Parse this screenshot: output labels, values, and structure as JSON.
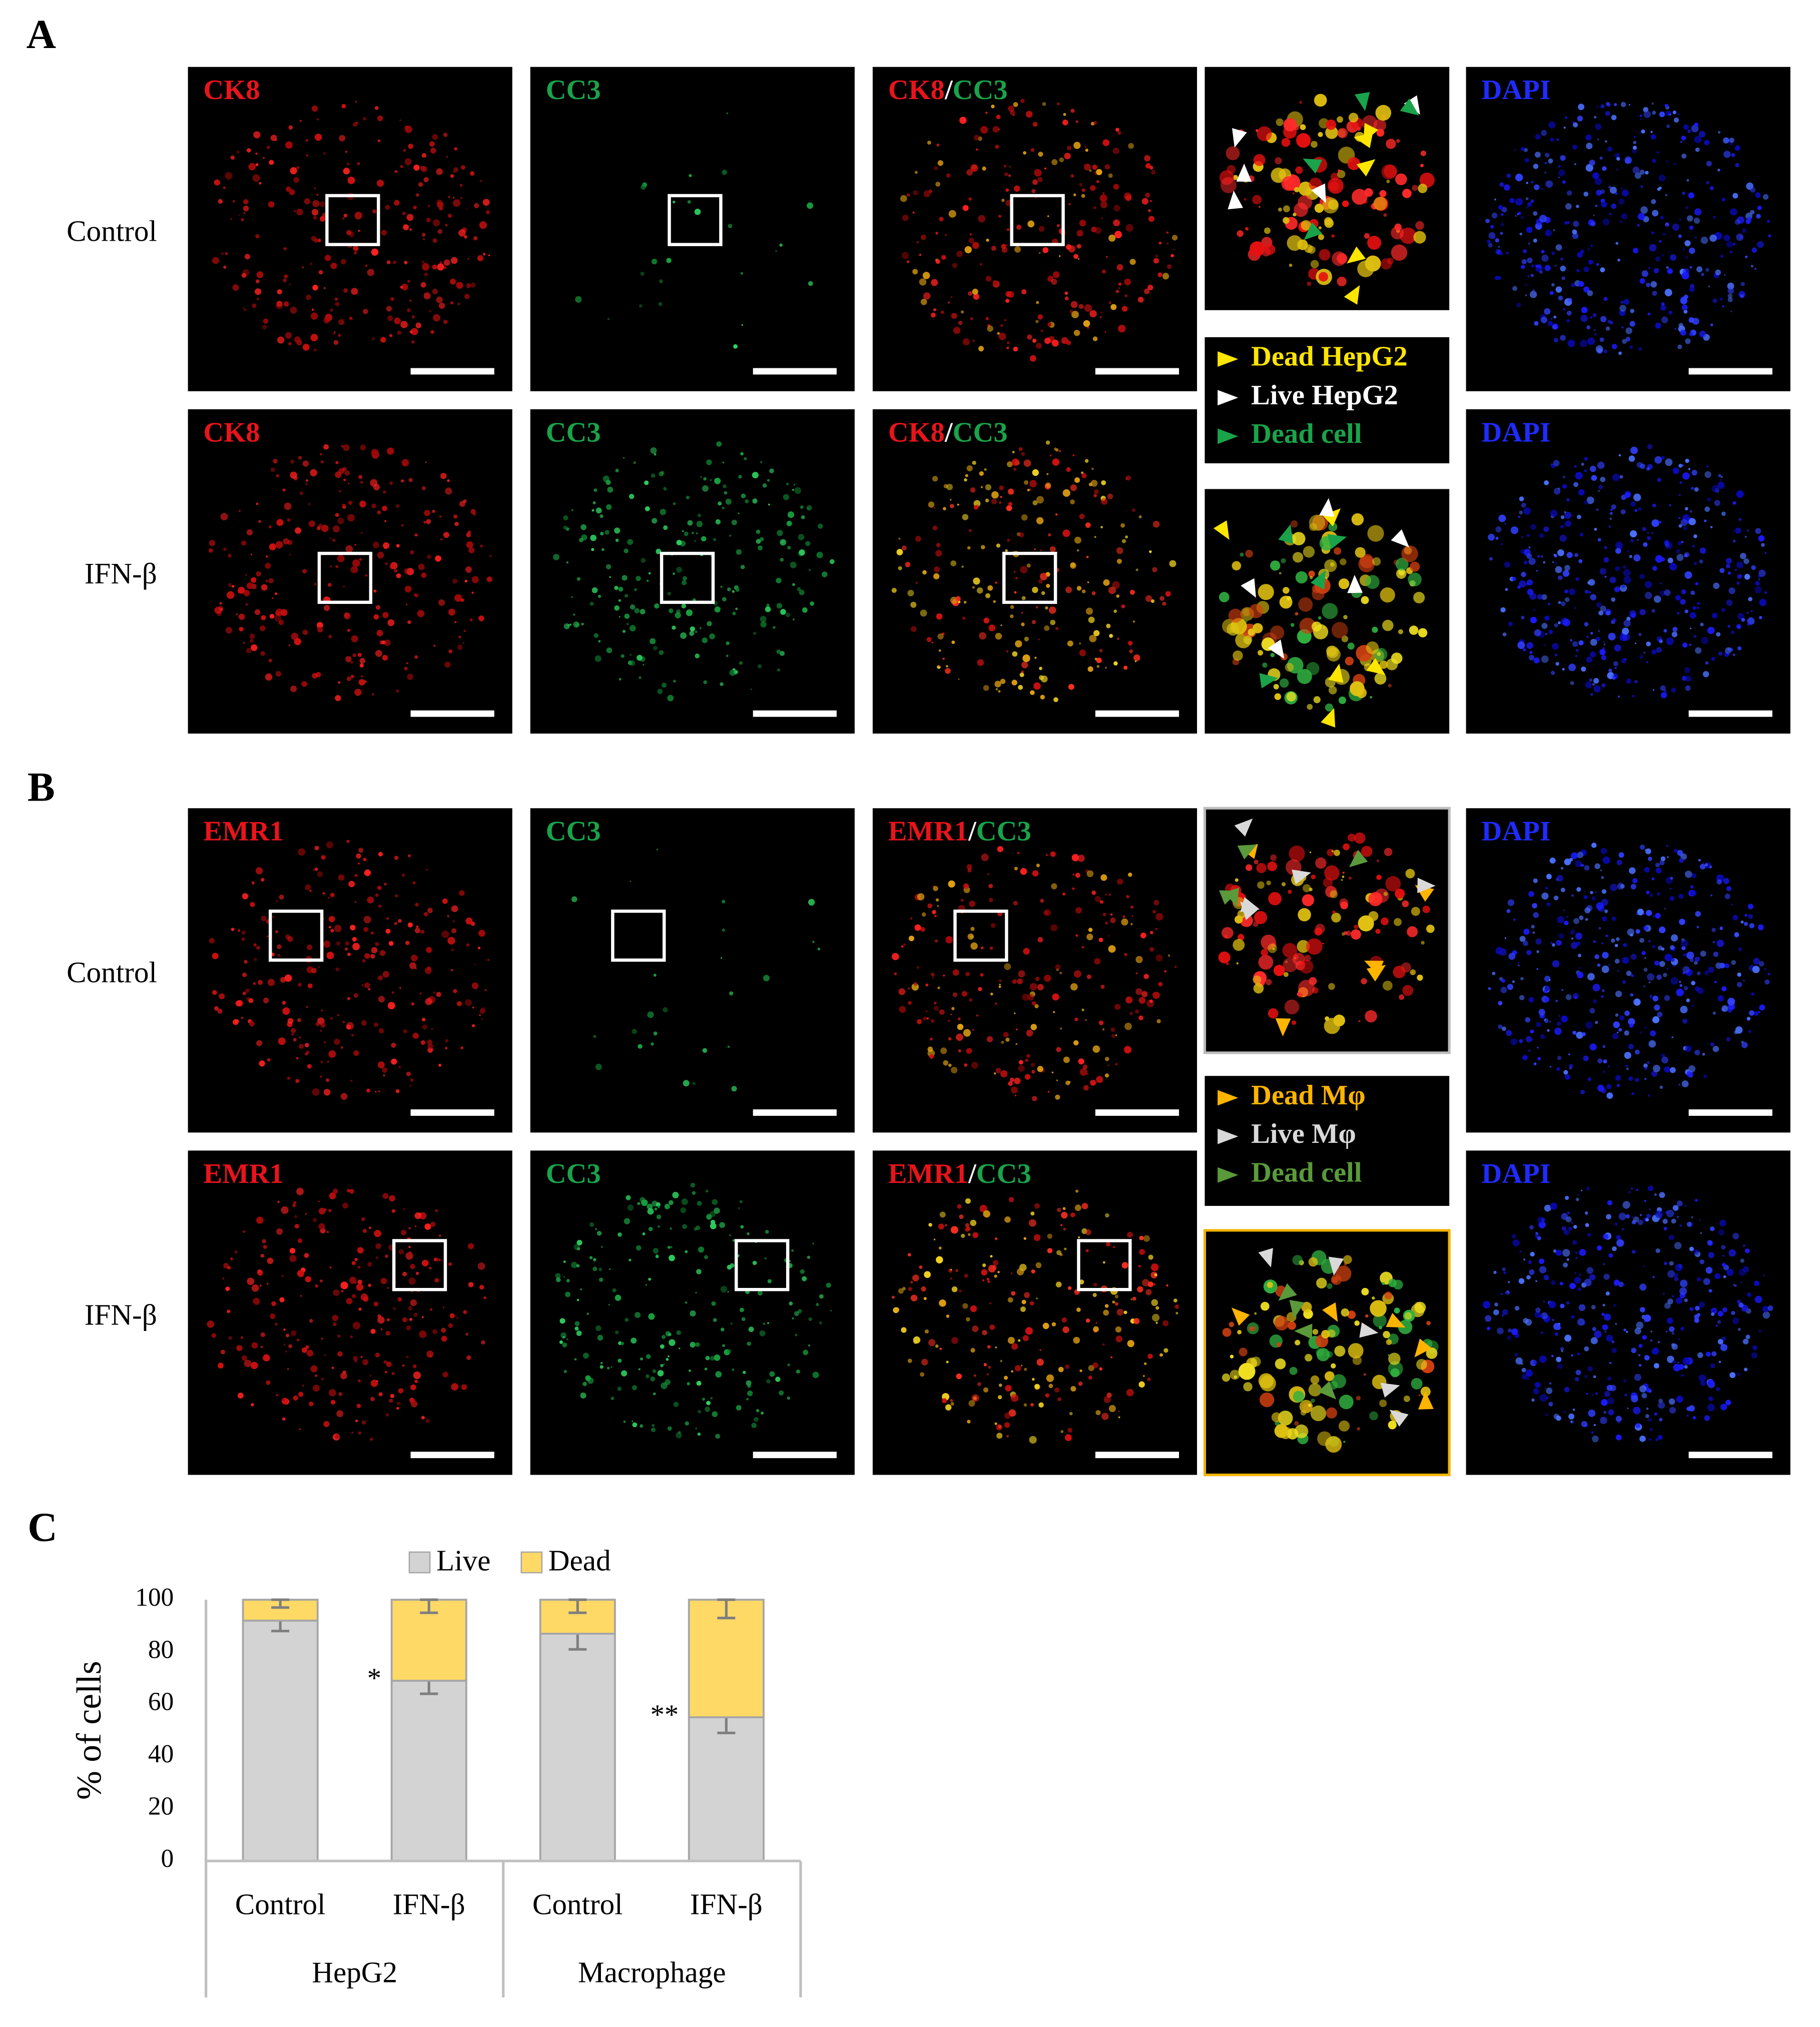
{
  "panels": [
    {
      "letter": "A",
      "rows": [
        {
          "label": "Control",
          "channels": [
            [
              "CK8"
            ],
            [
              "CC3"
            ],
            [
              "CK8",
              "/",
              "CC3"
            ],
            [
              "DAPI"
            ]
          ]
        },
        {
          "label": "IFN-β",
          "channels": [
            [
              "CK8"
            ],
            [
              "CC3"
            ],
            [
              "CK8",
              "/",
              "CC3"
            ],
            [
              "DAPI"
            ]
          ]
        }
      ],
      "legend": [
        "Dead HepG2",
        "Live HepG2",
        "Dead cell"
      ]
    },
    {
      "letter": "B",
      "rows": [
        {
          "label": "Control",
          "channels": [
            [
              "EMR1"
            ],
            [
              "CC3"
            ],
            [
              "EMR1",
              "/",
              "CC3"
            ],
            [
              "DAPI"
            ]
          ]
        },
        {
          "label": "IFN-β",
          "channels": [
            [
              "EMR1"
            ],
            [
              "CC3"
            ],
            [
              "EMR1",
              "/",
              "CC3"
            ],
            [
              "DAPI"
            ]
          ]
        }
      ],
      "legend": [
        "Dead Mφ",
        "Live Mφ",
        "Dead cell"
      ]
    }
  ],
  "chart_panel": "C",
  "chart_data": {
    "type": "bar",
    "stacked": true,
    "ylabel": "% of cells",
    "groups": [
      {
        "name": "HepG2",
        "categories": [
          "Control",
          "IFN-β"
        ]
      },
      {
        "name": "Macrophage",
        "categories": [
          "Control",
          "IFN-β"
        ]
      }
    ],
    "series": [
      {
        "name": "Live",
        "color": "#d3d3d3",
        "values": [
          92,
          69,
          87,
          55
        ],
        "errors": [
          4,
          5,
          6,
          6
        ]
      },
      {
        "name": "Dead",
        "color": "#ffd966",
        "values": [
          8,
          31,
          13,
          45
        ],
        "errors": [
          3,
          5,
          5,
          7
        ]
      }
    ],
    "annotations": [
      "*",
      "**"
    ],
    "ylim": [
      0,
      100
    ],
    "yticks": [
      0,
      20,
      40,
      60,
      80,
      100
    ],
    "grid": false
  }
}
